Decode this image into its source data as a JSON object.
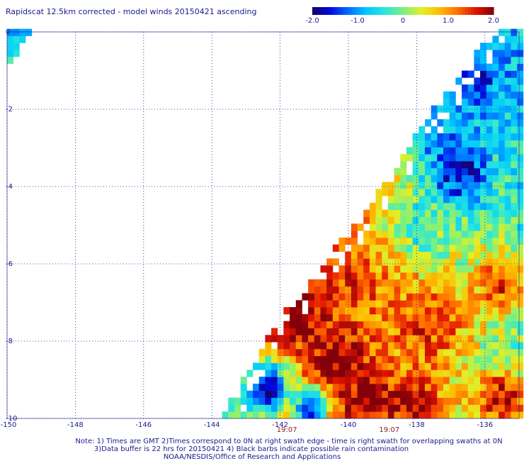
{
  "chart_data": {
    "type": "heatmap",
    "title": "Rapidscat 12.5km corrected - model winds 20150421 ascending",
    "colorbar": {
      "min": -2.0,
      "max": 2.0,
      "tick_labels": [
        "-2.0",
        "-1.0",
        "0",
        "1.0",
        "2.0"
      ],
      "tick_values": [
        -2.0,
        -1.0,
        0,
        1.0,
        2.0
      ]
    },
    "x_axis": {
      "range": [
        -150,
        -135
      ],
      "tick_values": [
        -150,
        -148,
        -146,
        -144,
        -142,
        -140,
        -138,
        -136
      ],
      "tick_labels": [
        "-150",
        "-148",
        "-146",
        "-144",
        "-142",
        "-140",
        "-138",
        "-136"
      ]
    },
    "y_axis": {
      "range": [
        -10,
        0
      ],
      "tick_values": [
        0,
        -2,
        -4,
        -6,
        -8,
        -10
      ],
      "tick_labels": [
        "0",
        "-2",
        "-4",
        "-6",
        "-8",
        "-10"
      ]
    },
    "grid": true,
    "time_labels": [
      {
        "text": "19:07",
        "lon": -141.8
      },
      {
        "text": "19:07",
        "lon": -138.8
      }
    ],
    "swaths": [
      {
        "name": "main",
        "edge": [
          [
            -143.8,
            -10
          ],
          [
            -142.1,
            -7.5
          ],
          [
            -139.4,
            -4.5
          ],
          [
            -137.5,
            -2
          ],
          [
            -135.8,
            0
          ]
        ]
      },
      {
        "name": "corner",
        "edge": [
          [
            -150,
            -0.9
          ],
          [
            -149.5,
            -0.3
          ],
          [
            -149.3,
            0
          ]
        ]
      }
    ],
    "feature_zones": [
      {
        "lon": -136.8,
        "lat": -3.6,
        "r": 0.9,
        "value": -1.8
      },
      {
        "lon": -136.5,
        "lat": -1.0,
        "r": 1.3,
        "value": -1.5
      },
      {
        "lon": -137.4,
        "lat": -2.5,
        "r": 1.0,
        "value": -1.1
      },
      {
        "lon": -140.2,
        "lat": -8.5,
        "r": 0.8,
        "value": 2.0
      },
      {
        "lon": -139.3,
        "lat": -9.4,
        "r": 0.7,
        "value": 2.0
      },
      {
        "lon": -141.3,
        "lat": -7.3,
        "r": 0.7,
        "value": 2.0
      },
      {
        "lon": -138.0,
        "lat": -9.8,
        "r": 0.8,
        "value": 1.9
      },
      {
        "lon": -135.4,
        "lat": -9.5,
        "r": 0.8,
        "value": 1.8
      },
      {
        "lon": -142.5,
        "lat": -9.2,
        "r": 0.9,
        "value": -1.9
      },
      {
        "lon": -143.5,
        "lat": -9.7,
        "r": 0.8,
        "value": -0.6
      },
      {
        "lon": -141.1,
        "lat": -9.7,
        "r": 0.5,
        "value": -1.7
      },
      {
        "lon": -140.0,
        "lat": -6.5,
        "r": 1.0,
        "value": 1.4
      },
      {
        "lon": -137.6,
        "lat": -7.5,
        "r": 1.1,
        "value": 1.5
      },
      {
        "lon": -137.9,
        "lat": -5.0,
        "r": 0.8,
        "value": -0.4
      },
      {
        "lon": -135.5,
        "lat": -6.5,
        "r": 0.8,
        "value": 1.6
      },
      {
        "lon": -140.3,
        "lat": -5.0,
        "r": 0.7,
        "value": 0.9
      }
    ],
    "notes": [
      "Note: 1) Times are GMT 2)Times correspond to 0N at right swath edge - time is right swath for overlapping swaths at 0N",
      "3)Data buffer is 22 hrs for 20150421 4) Black barbs indicate possible rain contamination",
      "NOAA/NESDIS/Office of Research and Applications"
    ]
  }
}
